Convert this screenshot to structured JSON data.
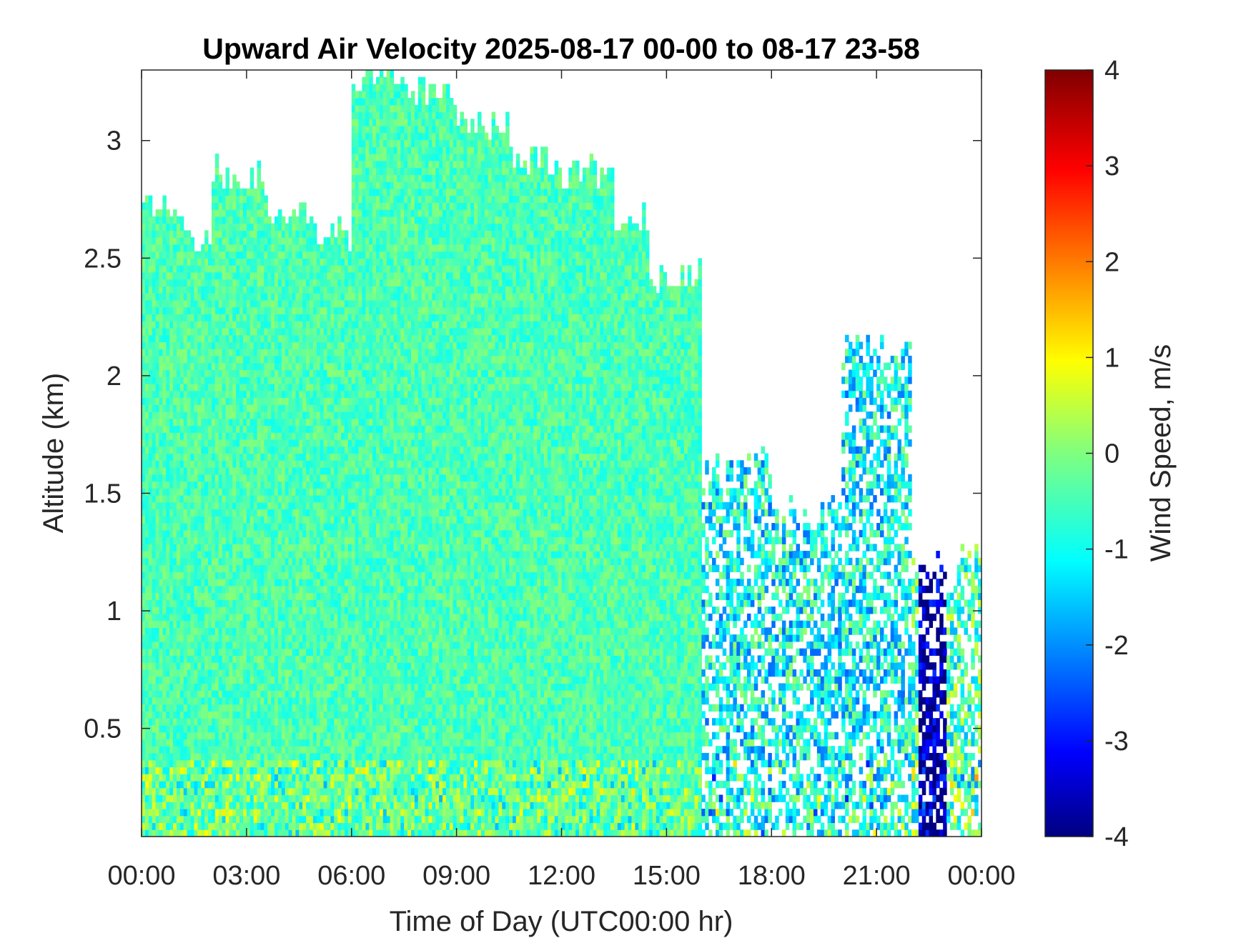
{
  "chart_data": {
    "type": "heatmap",
    "title": "Upward Air Velocity 2025-08-17 00-00 to 08-17 23-58",
    "xlabel": "Time of Day (UTC00:00 hr)",
    "ylabel": "Altitude (km)",
    "colorbar_label": "Wind Speed, m/s",
    "x_ticks": [
      "00:00",
      "03:00",
      "06:00",
      "09:00",
      "12:00",
      "15:00",
      "18:00",
      "21:00",
      "00:00"
    ],
    "x_tick_hours": [
      0,
      3,
      6,
      9,
      12,
      15,
      18,
      21,
      24
    ],
    "xlim_hours": [
      0,
      24
    ],
    "y_ticks": [
      "0.5",
      "1",
      "1.5",
      "2",
      "2.5",
      "3"
    ],
    "y_tick_values": [
      0.5,
      1,
      1.5,
      2,
      2.5,
      3
    ],
    "ylim_km": [
      0.04,
      3.3
    ],
    "colorbar_ticks": [
      "4",
      "3",
      "2",
      "1",
      "0",
      "-1",
      "-2",
      "-3",
      "-4"
    ],
    "colorbar_tick_values": [
      4,
      3,
      2,
      1,
      0,
      -1,
      -2,
      -3,
      -4
    ],
    "clim": [
      -4,
      4
    ],
    "colormap": "jet",
    "grid": false,
    "data_coverage": [
      {
        "hours": [
          0.0,
          1.0
        ],
        "top_km": 2.7
      },
      {
        "hours": [
          1.0,
          2.0
        ],
        "top_km": 2.6
      },
      {
        "hours": [
          2.0,
          3.5
        ],
        "top_km": 2.85
      },
      {
        "hours": [
          3.5,
          5.0
        ],
        "top_km": 2.7
      },
      {
        "hours": [
          5.0,
          6.0
        ],
        "top_km": 2.6
      },
      {
        "hours": [
          6.0,
          7.5
        ],
        "top_km": 3.25
      },
      {
        "hours": [
          7.5,
          9.0
        ],
        "top_km": 3.2
      },
      {
        "hours": [
          9.0,
          10.5
        ],
        "top_km": 3.05
      },
      {
        "hours": [
          10.5,
          12.0
        ],
        "top_km": 2.9
      },
      {
        "hours": [
          12.0,
          13.5
        ],
        "top_km": 2.85
      },
      {
        "hours": [
          13.5,
          14.5
        ],
        "top_km": 2.65
      },
      {
        "hours": [
          14.5,
          16.0
        ],
        "top_km": 2.4
      },
      {
        "hours": [
          16.0,
          18.0
        ],
        "top_km": 1.6
      },
      {
        "hours": [
          18.0,
          20.0
        ],
        "top_km": 1.4
      },
      {
        "hours": [
          20.0,
          22.0
        ],
        "top_km": 2.1
      },
      {
        "hours": [
          22.0,
          24.0
        ],
        "top_km": 1.2
      }
    ],
    "mean_velocity_ms": [
      {
        "hours": [
          0.0,
          16.0
        ],
        "value": -0.4
      },
      {
        "hours": [
          16.0,
          22.0
        ],
        "value": -1.0
      },
      {
        "hours": [
          22.2,
          23.0
        ],
        "value": -3.8
      }
    ]
  }
}
